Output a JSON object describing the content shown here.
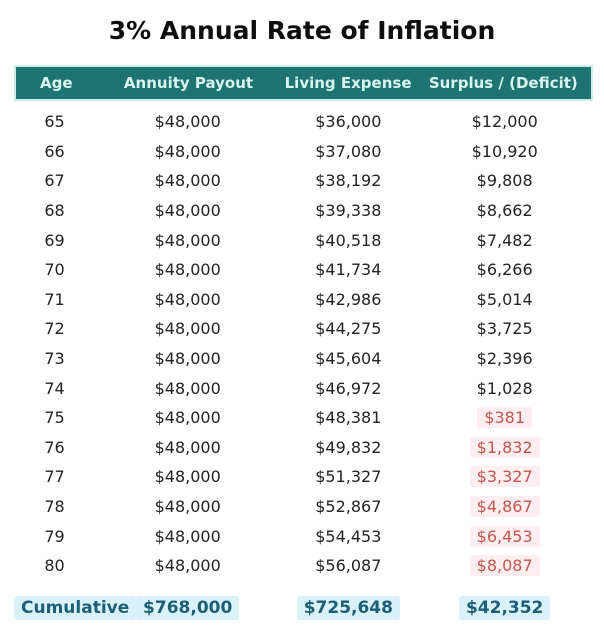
{
  "title": "3% Annual Rate of Inflation",
  "chart_data": {
    "type": "table",
    "title": "3% Annual Rate of Inflation",
    "columns": [
      "Age",
      "Annuity Payout",
      "Living Expense",
      "Surplus / (Deficit)"
    ],
    "rows": [
      {
        "age": "65",
        "payout": "$48,000",
        "expense": "$36,000",
        "surplus": "$12,000",
        "deficit": false
      },
      {
        "age": "66",
        "payout": "$48,000",
        "expense": "$37,080",
        "surplus": "$10,920",
        "deficit": false
      },
      {
        "age": "67",
        "payout": "$48,000",
        "expense": "$38,192",
        "surplus": "$9,808",
        "deficit": false
      },
      {
        "age": "68",
        "payout": "$48,000",
        "expense": "$39,338",
        "surplus": "$8,662",
        "deficit": false
      },
      {
        "age": "69",
        "payout": "$48,000",
        "expense": "$40,518",
        "surplus": "$7,482",
        "deficit": false
      },
      {
        "age": "70",
        "payout": "$48,000",
        "expense": "$41,734",
        "surplus": "$6,266",
        "deficit": false
      },
      {
        "age": "71",
        "payout": "$48,000",
        "expense": "$42,986",
        "surplus": "$5,014",
        "deficit": false
      },
      {
        "age": "72",
        "payout": "$48,000",
        "expense": "$44,275",
        "surplus": "$3,725",
        "deficit": false
      },
      {
        "age": "73",
        "payout": "$48,000",
        "expense": "$45,604",
        "surplus": "$2,396",
        "deficit": false
      },
      {
        "age": "74",
        "payout": "$48,000",
        "expense": "$46,972",
        "surplus": "$1,028",
        "deficit": false
      },
      {
        "age": "75",
        "payout": "$48,000",
        "expense": "$48,381",
        "surplus": "$381",
        "deficit": true
      },
      {
        "age": "76",
        "payout": "$48,000",
        "expense": "$49,832",
        "surplus": "$1,832",
        "deficit": true
      },
      {
        "age": "77",
        "payout": "$48,000",
        "expense": "$51,327",
        "surplus": "$3,327",
        "deficit": true
      },
      {
        "age": "78",
        "payout": "$48,000",
        "expense": "$52,867",
        "surplus": "$4,867",
        "deficit": true
      },
      {
        "age": "79",
        "payout": "$48,000",
        "expense": "$54,453",
        "surplus": "$6,453",
        "deficit": true
      },
      {
        "age": "80",
        "payout": "$48,000",
        "expense": "$56,087",
        "surplus": "$8,087",
        "deficit": true
      }
    ],
    "cumulative": {
      "label": "Cumulative",
      "payout": "$768,000",
      "expense": "$725,648",
      "surplus": "$42,352"
    }
  },
  "colors": {
    "header_bg": "#1e7373",
    "header_text": "#d9f4ee",
    "header_border": "#c9eee7",
    "body_text": "#232323",
    "deficit_text": "#c3574d",
    "deficit_bg": "#fdeff1",
    "cumulative_text": "#1d5f78",
    "cumulative_bg": "#d9f2f7"
  }
}
